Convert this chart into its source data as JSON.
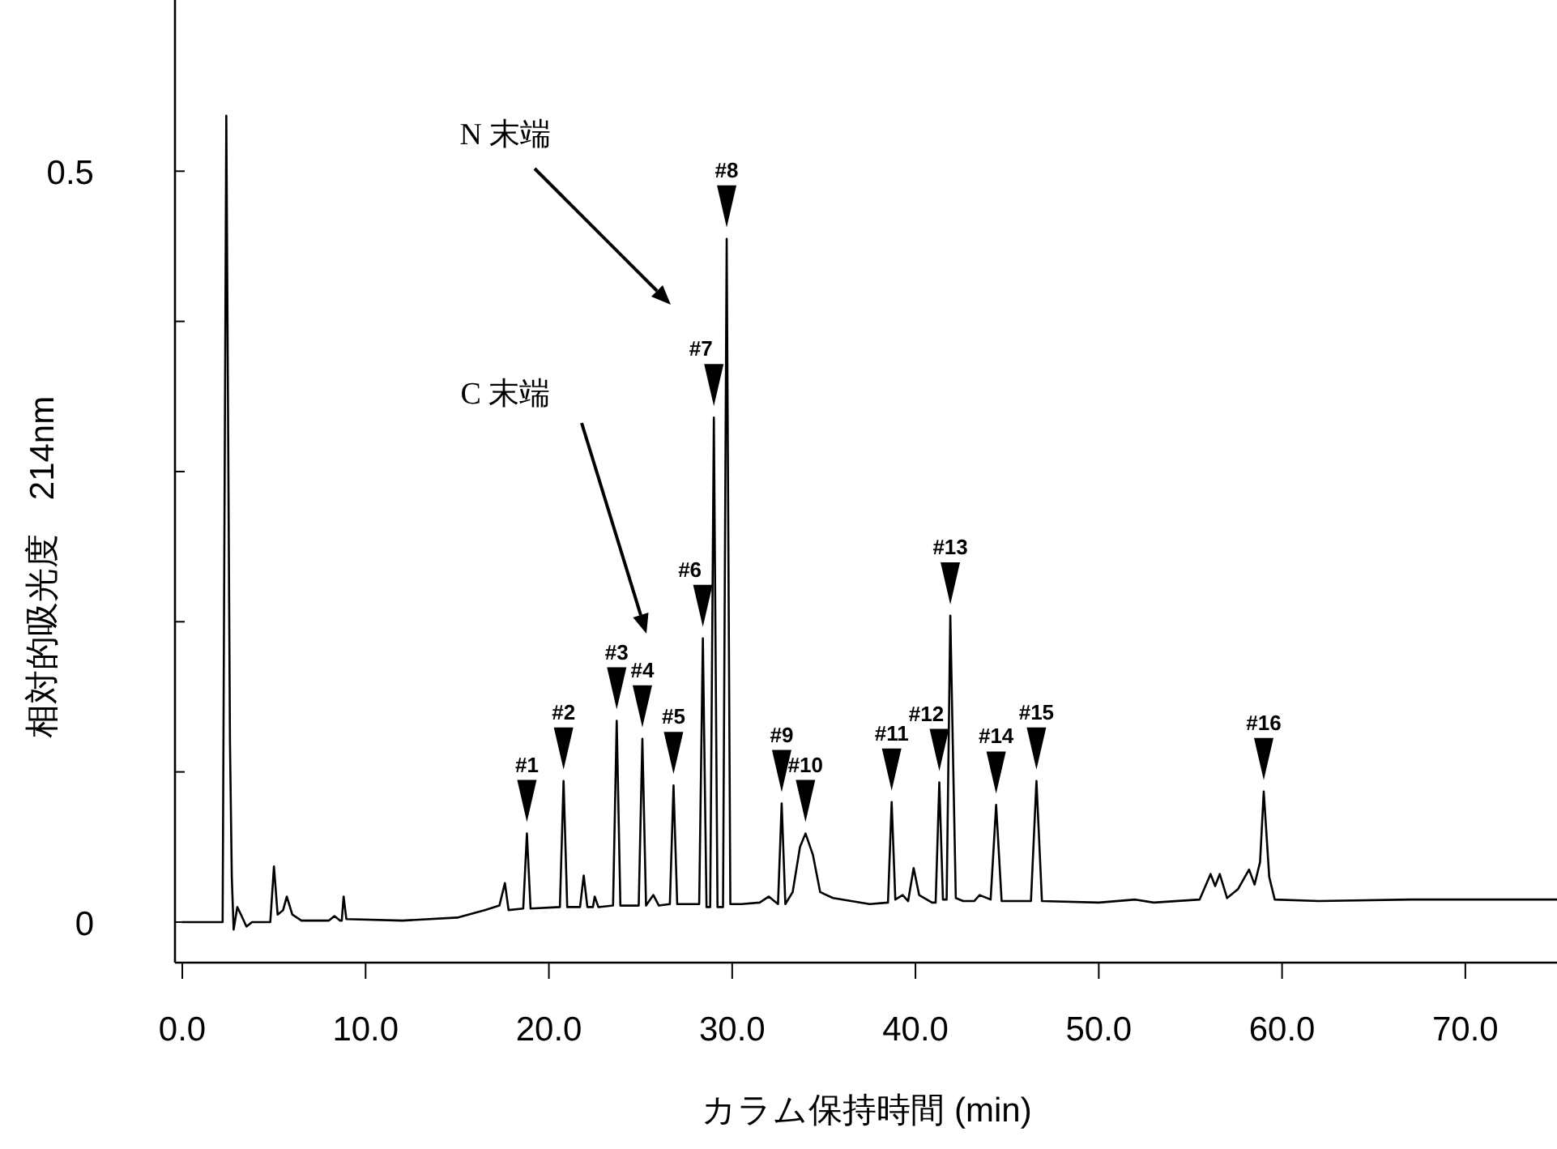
{
  "chart_data": {
    "type": "line",
    "xlabel": "カラム保持時間 (min)",
    "ylabel": "相対的吸光度　214nm",
    "xlim": [
      -0.4,
      75
    ],
    "ylim": [
      -0.027,
      0.614
    ],
    "xticks": [
      {
        "value": 0,
        "label": "0.0"
      },
      {
        "value": 10,
        "label": "10.0"
      },
      {
        "value": 20,
        "label": "20.0"
      },
      {
        "value": 30,
        "label": "30.0"
      },
      {
        "value": 40,
        "label": "40.0"
      },
      {
        "value": 50,
        "label": "50.0"
      },
      {
        "value": 60,
        "label": "60.0"
      },
      {
        "value": 70,
        "label": "70.0"
      }
    ],
    "yticks": [
      0,
      {
        "value": 0.1,
        "label": null
      },
      {
        "value": 0.2,
        "label": null
      },
      {
        "value": 0.3,
        "label": null
      },
      {
        "value": 0.4,
        "label": null
      },
      0.5
    ],
    "series": [
      {
        "color": "#000000",
        "x": [
          0,
          2.2,
          2.4,
          2.6,
          2.7,
          2.8,
          3.0,
          3.2,
          3.5,
          3.8,
          4.8,
          5.0,
          5.2,
          5.5,
          5.7,
          6.0,
          6.5,
          8.0,
          8.3,
          8.6,
          8.7,
          8.8,
          8.95,
          12,
          15,
          16.5,
          17.3,
          17.6,
          17.8,
          18.6,
          18.8,
          19.0,
          20.6,
          20.8,
          21.0,
          21.7,
          21.9,
          22.1,
          22.4,
          22.5,
          22.7,
          23.5,
          23.7,
          23.9,
          24.9,
          25.1,
          25.3,
          25.7,
          26.0,
          26.6,
          26.8,
          27.0,
          28.2,
          28.4,
          28.6,
          28.8,
          29.0,
          29.2,
          29.5,
          29.7,
          29.9,
          30.5,
          31.5,
          32.0,
          32.5,
          32.7,
          32.9,
          33.3,
          33.7,
          34.0,
          34.4,
          34.8,
          35.5,
          36.5,
          37.5,
          38.5,
          38.7,
          38.9,
          39.3,
          39.6,
          39.9,
          40.2,
          40.9,
          41.1,
          41.3,
          41.5,
          41.7,
          41.9,
          42.2,
          42.6,
          43.2,
          43.5,
          44.1,
          44.4,
          44.7,
          45.5,
          46.3,
          46.6,
          46.9,
          50,
          52,
          53,
          55.5,
          56.1,
          56.35,
          56.6,
          57,
          57.6,
          58.2,
          58.5,
          58.8,
          59.0,
          59.3,
          59.6,
          62,
          67,
          72,
          75
        ],
        "values": [
          0,
          0,
          0.537,
          0.12,
          0.03,
          -0.005,
          0.01,
          0.005,
          -0.003,
          0,
          0,
          0.037,
          0.005,
          0.008,
          0.017,
          0.005,
          0.001,
          0.001,
          0.004,
          0.001,
          0.001,
          0.017,
          0.002,
          0.001,
          0.003,
          0.008,
          0.011,
          0.026,
          0.008,
          0.009,
          0.059,
          0.009,
          0.01,
          0.094,
          0.01,
          0.01,
          0.031,
          0.01,
          0.01,
          0.017,
          0.01,
          0.011,
          0.134,
          0.011,
          0.011,
          0.122,
          0.011,
          0.018,
          0.011,
          0.012,
          0.091,
          0.012,
          0.012,
          0.189,
          0.01,
          0.01,
          0.336,
          0.01,
          0.01,
          0.455,
          0.012,
          0.012,
          0.013,
          0.017,
          0.012,
          0.079,
          0.012,
          0.02,
          0.05,
          0.059,
          0.045,
          0.02,
          0.016,
          0.014,
          0.012,
          0.013,
          0.08,
          0.015,
          0.018,
          0.014,
          0.036,
          0.018,
          0.013,
          0.013,
          0.093,
          0.015,
          0.015,
          0.204,
          0.016,
          0.014,
          0.014,
          0.018,
          0.015,
          0.078,
          0.014,
          0.014,
          0.014,
          0.094,
          0.014,
          0.013,
          0.015,
          0.013,
          0.015,
          0.032,
          0.024,
          0.032,
          0.016,
          0.022,
          0.035,
          0.025,
          0.04,
          0.087,
          0.03,
          0.015,
          0.014,
          0.015,
          0.015,
          0.015
        ]
      }
    ],
    "annotations": [
      "N 末端",
      "C 末端",
      {
        "text": "#1",
        "x": 18.8,
        "y": 0.059
      },
      {
        "text": "#2",
        "x": 20.8,
        "y": 0.094
      },
      {
        "text": "#3",
        "x": 23.7,
        "y": 0.134
      },
      {
        "text": "#4",
        "x": 25.1,
        "y": 0.122
      },
      {
        "text": "#5",
        "x": 26.8,
        "y": 0.091
      },
      {
        "text": "#6",
        "x": 28.4,
        "y": 0.189
      },
      {
        "text": "#7",
        "x": 29.0,
        "y": 0.336
      },
      {
        "text": "#8",
        "x": 29.7,
        "y": 0.455
      },
      {
        "text": "#9",
        "x": 32.7,
        "y": 0.079
      },
      {
        "text": "#10",
        "x": 34.0,
        "y": 0.059
      },
      {
        "text": "#11",
        "x": 38.7,
        "y": 0.08
      },
      {
        "text": "#12",
        "x": 41.3,
        "y": 0.093
      },
      {
        "text": "#13",
        "x": 41.9,
        "y": 0.204
      },
      {
        "text": "#14",
        "x": 44.4,
        "y": 0.078
      },
      {
        "text": "#15",
        "x": 46.6,
        "y": 0.094
      },
      {
        "text": "#16",
        "x": 59.0,
        "y": 0.087
      }
    ]
  }
}
